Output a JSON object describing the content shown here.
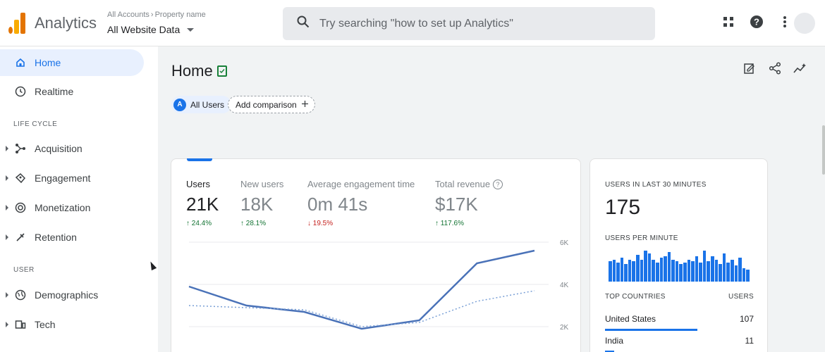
{
  "app": {
    "title": "Analytics"
  },
  "account": {
    "crumb_accounts": "All Accounts",
    "crumb_property": "Property name",
    "selected": "All Website Data"
  },
  "search": {
    "placeholder": "Try searching \"how to set up Analytics\""
  },
  "toolbar": {
    "icons": [
      "apps-icon",
      "help-icon",
      "more-vert-icon"
    ]
  },
  "sidebar": {
    "items": [
      {
        "label": "Home",
        "icon": "home-icon",
        "active": true
      },
      {
        "label": "Realtime",
        "icon": "clock-icon"
      }
    ],
    "sections": [
      {
        "title": "LIFE CYCLE",
        "items": [
          {
            "label": "Acquisition",
            "icon": "acquisition-icon"
          },
          {
            "label": "Engagement",
            "icon": "engagement-icon"
          },
          {
            "label": "Monetization",
            "icon": "monetization-icon"
          },
          {
            "label": "Retention",
            "icon": "retention-icon"
          }
        ]
      },
      {
        "title": "USER",
        "items": [
          {
            "label": "Demographics",
            "icon": "globe-icon"
          },
          {
            "label": "Tech",
            "icon": "tech-icon"
          }
        ]
      }
    ]
  },
  "page": {
    "title": "Home"
  },
  "filters": {
    "audience_letter": "A",
    "audience": "All Users",
    "add_comparison": "Add comparison"
  },
  "metrics": [
    {
      "label": "Users",
      "value": "21K",
      "delta": "24.4%",
      "direction": "up"
    },
    {
      "label": "New users",
      "value": "18K",
      "delta": "28.1%",
      "direction": "up"
    },
    {
      "label": "Average engagement time",
      "value": "0m 41s",
      "delta": "19.5%",
      "direction": "down"
    },
    {
      "label": "Total revenue",
      "value": "$17K",
      "delta": "117.6%",
      "direction": "up",
      "help": "?"
    }
  ],
  "chart_data": {
    "type": "line",
    "y_ticks": [
      "6K",
      "4K",
      "2K"
    ],
    "ylim": [
      2000,
      6000
    ],
    "grid": true,
    "series": [
      {
        "style": "solid",
        "values": [
          3900,
          3000,
          2700,
          1900,
          2300,
          5000,
          5600
        ]
      },
      {
        "style": "dotted",
        "values": [
          3000,
          2900,
          2800,
          2000,
          2200,
          3200,
          3700
        ]
      }
    ]
  },
  "realtime": {
    "caption": "USERS IN LAST 30 MINUTES",
    "value": "175",
    "per_minute_caption": "USERS PER MINUTE",
    "per_minute": [
      28,
      30,
      26,
      32,
      24,
      30,
      28,
      36,
      30,
      42,
      38,
      30,
      26,
      32,
      34,
      40,
      30,
      28,
      24,
      26,
      30,
      28,
      34,
      26,
      42,
      28,
      34,
      30,
      24,
      38,
      26,
      30,
      22,
      32,
      18,
      16
    ],
    "countries_header": "TOP COUNTRIES",
    "users_header": "USERS",
    "countries": [
      {
        "name": "United States",
        "users": "107",
        "share": 0.62
      },
      {
        "name": "India",
        "users": "11",
        "share": 0.06
      }
    ]
  },
  "colors": {
    "accent": "#1a73e8",
    "positive": "#137333",
    "negative": "#c5221f",
    "logo_orange": "#e37400",
    "logo_yellow": "#f9ab00"
  }
}
